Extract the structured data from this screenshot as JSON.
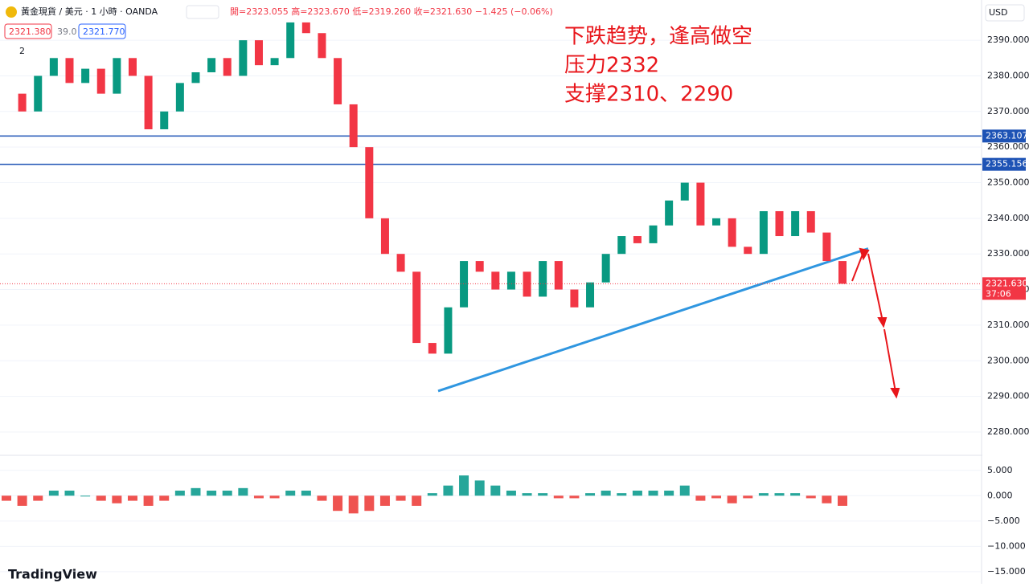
{
  "header": {
    "symbol": "黃金現貨 / 美元 · 1 小時 · OANDA",
    "ohlc": "開=2323.055 高=2323.670 低=2319.260 收=2321.630 −1.425 (−0.06%)",
    "sell": "2321.380",
    "spread": "39.0",
    "buy": "2321.770",
    "indicators": "2",
    "currency": "USD"
  },
  "annotation": [
    "下跌趋势，逢高做空",
    "压力2332",
    "支撑2310、2290"
  ],
  "logo": "TradingView",
  "chart_data": [
    {
      "type": "candlestick",
      "up_color": "#089981",
      "down_color": "#f23645",
      "values": [
        2375,
        2370,
        2380,
        2385,
        2378,
        2382,
        2375,
        2385,
        2380,
        2365,
        2370,
        2378,
        2381,
        2385,
        2380,
        2390,
        2383,
        2385,
        2395,
        2392,
        2385,
        2372,
        2360,
        2340,
        2330,
        2325,
        2305,
        2302,
        2315,
        2328,
        2325,
        2320,
        2325,
        2318,
        2328,
        2320,
        2315,
        2322,
        2330,
        2335,
        2333,
        2338,
        2345,
        2350,
        2338,
        2340,
        2332,
        2330,
        2342,
        2335,
        2342,
        2336,
        2328,
        2321.63
      ],
      "ylim": [
        2273.9,
        2401.3
      ],
      "yticks": [
        {
          "value": 2280,
          "label": "2280.000"
        },
        {
          "value": 2290,
          "label": "2290.000"
        },
        {
          "value": 2300,
          "label": "2300.000"
        },
        {
          "value": 2310,
          "label": "2310.000"
        },
        {
          "value": 2320,
          "label": "2320.000"
        },
        {
          "value": 2330,
          "label": "2330.000"
        },
        {
          "value": 2340,
          "label": "2340.000"
        },
        {
          "value": 2350,
          "label": "2350.000"
        },
        {
          "value": 2360,
          "label": "2360.000"
        },
        {
          "value": 2370,
          "label": "2370.000"
        },
        {
          "value": 2380,
          "label": "2380.000"
        },
        {
          "value": 2390,
          "label": "2390.000"
        }
      ],
      "hlines": [
        {
          "value": 2363.107,
          "label": "2363.107"
        },
        {
          "value": 2355.156,
          "label": "2355.156"
        }
      ],
      "last": {
        "value": 2321.63,
        "label": "2321.630",
        "countdown": "37:06"
      },
      "trendline": [
        2291.5,
        2331.5
      ],
      "trend_color": "#2f96e0",
      "hline_color": "#1e53b5"
    },
    {
      "type": "bar",
      "up_color": "#26a69a",
      "down_color": "#ef5350",
      "values": [
        -1,
        -2,
        -1,
        1,
        1,
        0,
        -1,
        -1.5,
        -1,
        -2,
        -1,
        1,
        1.5,
        1,
        1,
        1.5,
        -0.5,
        -0.5,
        1,
        1,
        -1,
        -3,
        -3.5,
        -3,
        -2,
        -1,
        -2,
        0.5,
        2,
        4,
        3,
        2,
        1,
        0.5,
        0.5,
        -0.5,
        -0.5,
        0.5,
        1,
        0.5,
        1,
        1,
        1,
        2,
        -1,
        -0.5,
        -1.5,
        -0.5,
        0.5,
        0.5,
        0.5,
        -0.5,
        -1.5,
        -2
      ],
      "ylim": [
        -17.4,
        7.5
      ],
      "yticks": [
        {
          "value": 5,
          "label": "5.000"
        },
        {
          "value": 0,
          "label": "0.000"
        },
        {
          "value": -5,
          "label": "−5.000"
        },
        {
          "value": -10,
          "label": "−10.000"
        },
        {
          "value": -15,
          "label": "−15.000"
        }
      ]
    }
  ]
}
